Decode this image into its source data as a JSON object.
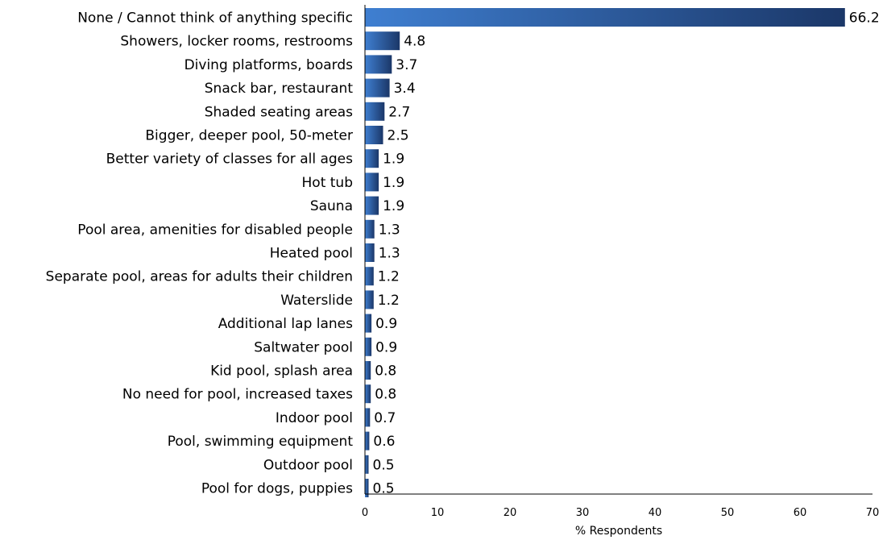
{
  "chart_data": {
    "type": "bar",
    "orientation": "horizontal",
    "categories": [
      "None / Cannot think of anything specific",
      "Showers, locker rooms, restrooms",
      "Diving platforms, boards",
      "Snack bar, restaurant",
      "Shaded seating areas",
      "Bigger, deeper pool, 50-meter",
      "Better variety of classes for all ages",
      "Hot tub",
      "Sauna",
      "Pool area, amenities for disabled people",
      "Heated pool",
      "Separate pool, areas for adults their children",
      "Waterslide",
      "Additional lap lanes",
      "Saltwater pool",
      "Kid pool, splash area",
      "No need for pool, increased taxes",
      "Indoor pool",
      "Pool, swimming equipment",
      "Outdoor pool",
      "Pool for dogs, puppies"
    ],
    "values": [
      66.2,
      4.8,
      3.7,
      3.4,
      2.7,
      2.5,
      1.9,
      1.9,
      1.9,
      1.3,
      1.3,
      1.2,
      1.2,
      0.9,
      0.9,
      0.8,
      0.8,
      0.7,
      0.6,
      0.5,
      0.5
    ],
    "value_labels": [
      "66.2",
      "4.8",
      "3.7",
      "3.4",
      "2.7",
      "2.5",
      "1.9",
      "1.9",
      "1.9",
      "1.3",
      "1.3",
      "1.2",
      "1.2",
      "0.9",
      "0.9",
      "0.8",
      "0.8",
      "0.7",
      "0.6",
      "0.5",
      "0.5"
    ],
    "xlabel": "% Respondents",
    "ylabel": "",
    "title": "",
    "xlim": [
      0,
      70
    ],
    "xticks": [
      0,
      10,
      20,
      30,
      40,
      50,
      60,
      70
    ],
    "grid": false,
    "legend": "none",
    "colors": {
      "bar_light": "#3f7fd1",
      "bar_dark": "#1b3768"
    }
  }
}
